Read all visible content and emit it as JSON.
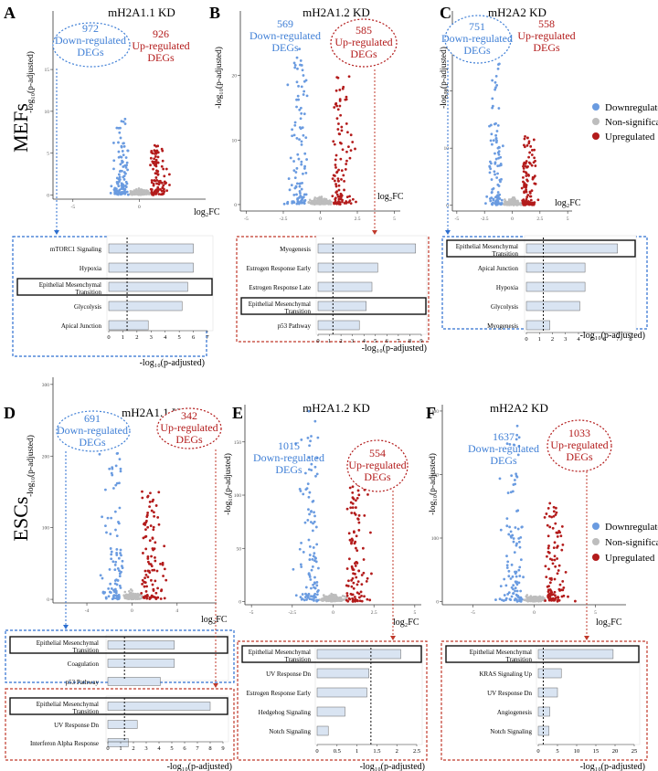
{
  "row_labels": {
    "top": "MEFs",
    "bottom": "ESCs"
  },
  "legend": {
    "items": [
      {
        "label": "Downregulated",
        "color": "#6a9be0"
      },
      {
        "label": "Non-significant",
        "color": "#bdbdbd"
      },
      {
        "label": "Upregulated",
        "color": "#b31b1b"
      }
    ]
  },
  "colors": {
    "down": "#3f7fd6",
    "up": "#b31b1b",
    "bar_fill": "#d9e4f2",
    "bar_stroke": "#555555"
  },
  "chart_data": [
    {
      "id": "A",
      "type": "scatter",
      "panel_letter": "A",
      "title": "mH2A1.1 KD",
      "ylabel": "-log₁₀(p-adjusted)",
      "xlabel": "log₂FC",
      "xticks": [
        -5,
        0
      ],
      "yticks": [
        0,
        5,
        10,
        15
      ],
      "xlim": [
        -6.5,
        5
      ],
      "ylim": [
        -0.5,
        22
      ],
      "down": {
        "count": "972",
        "label": "Down-regulated DEGs",
        "max_y": 9
      },
      "up": {
        "count": "926",
        "label": "Up-regulated DEGs",
        "max_y": 6
      }
    },
    {
      "id": "B",
      "type": "scatter",
      "panel_letter": "B",
      "title": "mH2A1.2 KD",
      "ylabel": "-log₁₀(p-adjusted)",
      "xlabel": "log₂FC",
      "xticks": [
        -5.0,
        -2.5,
        0.0,
        2.5,
        5.0
      ],
      "yticks": [
        0,
        10,
        20
      ],
      "xlim": [
        -5.4,
        5.4
      ],
      "ylim": [
        -1,
        30
      ],
      "down": {
        "count": "569",
        "label": "Down-regulated DEGs",
        "max_y": 24
      },
      "up": {
        "count": "585",
        "label": "Up-regulated DEGs",
        "max_y": 20
      }
    },
    {
      "id": "C",
      "type": "scatter",
      "panel_letter": "C",
      "title": "mH2A2 KD",
      "ylabel": "-log₁₀(p-adjusted)",
      "xlabel": "log₂FC",
      "xticks": [
        -5.0,
        -2.5,
        0.0,
        2.5,
        5.0
      ],
      "yticks": [
        0,
        10,
        20
      ],
      "xlim": [
        -5.4,
        5.4
      ],
      "ylim": [
        -1,
        34
      ],
      "down": {
        "count": "751",
        "label": "Down-regulated DEGs",
        "max_y": 28
      },
      "up": {
        "count": "558",
        "label": "Up-regulated DEGs",
        "max_y": 12
      }
    },
    {
      "id": "D",
      "type": "scatter",
      "panel_letter": "D",
      "title": "mH2A1.1 KD",
      "ylabel": "-log₁₀(p-adjusted)",
      "xlabel": "log₂FC",
      "xticks": [
        -4,
        0,
        4
      ],
      "yticks": [
        0,
        100,
        200,
        300
      ],
      "xlim": [
        -7,
        7.5
      ],
      "ylim": [
        -5,
        310
      ],
      "down": {
        "count": "691",
        "label": "Down-regulated DEGs",
        "max_y": 240
      },
      "up": {
        "count": "342",
        "label": "Up-regulated DEGs",
        "max_y": 150
      }
    },
    {
      "id": "E",
      "type": "scatter",
      "panel_letter": "E",
      "title": "mH2A1.2 KD",
      "ylabel": "-log₁₀(p-adjusted)",
      "xlabel": "log₂FC",
      "xticks": [
        -5.0,
        -2.5,
        0.0,
        2.5,
        5.0
      ],
      "yticks": [
        0,
        50,
        100,
        150
      ],
      "xlim": [
        -5.4,
        5.4
      ],
      "ylim": [
        -3,
        185
      ],
      "down": {
        "count": "1015",
        "label": "Down-regulated DEGs",
        "max_y": 180
      },
      "up": {
        "count": "554",
        "label": "Up-regulated DEGs",
        "max_y": 110
      }
    },
    {
      "id": "F",
      "type": "scatter",
      "panel_letter": "F",
      "title": "mH2A2 KD",
      "ylabel": "-log₁₀(p-adjusted)",
      "xlabel": "log₂FC",
      "xticks": [
        -5,
        0,
        5
      ],
      "yticks": [
        0,
        100,
        200,
        300
      ],
      "xlim": [
        -7.5,
        7.5
      ],
      "ylim": [
        -5,
        310
      ],
      "down": {
        "count": "1637",
        "label": "Down-regulated DEGs",
        "max_y": 280
      },
      "up": {
        "count": "1033",
        "label": "Up-regulated DEGs",
        "max_y": 160
      }
    },
    {
      "id": "A-bar",
      "type": "bar",
      "box": "blue",
      "categories": [
        "mTORC1 Signaling",
        "Hypoxia",
        "Epithelial Mesenchymal Transition",
        "Glycolysis",
        "Apical Junction"
      ],
      "values": [
        6.0,
        6.0,
        5.6,
        5.2,
        2.8
      ],
      "highlight": 2,
      "xticks": [
        0,
        1,
        2,
        3,
        4,
        5,
        6,
        7
      ],
      "xlim": [
        0,
        7
      ],
      "threshold": 1.3,
      "xlabel": "-log₁₀(p-adjusted)"
    },
    {
      "id": "B-bar",
      "type": "bar",
      "box": "red",
      "categories": [
        "Myogenesis",
        "Estrogen Response Early",
        "Estrogen Response Late",
        "Epithelial Mesenchymal Transition",
        "p53 Pathway"
      ],
      "values": [
        8.5,
        5.2,
        4.7,
        4.2,
        3.6
      ],
      "highlight": 3,
      "xticks": [
        0,
        1,
        2,
        3,
        4,
        5,
        6,
        7,
        8,
        9
      ],
      "xlim": [
        0,
        9
      ],
      "threshold": 1.3,
      "xlabel": "-log₁₀(p-adjusted)"
    },
    {
      "id": "C-bar",
      "type": "bar",
      "box": "blue",
      "categories": [
        "Epithelial Mesenchymal Transition",
        "Apical Junction",
        "Hypoxia",
        "Glycolysis",
        "Myogenesis"
      ],
      "values": [
        7.0,
        4.5,
        4.5,
        4.1,
        1.8
      ],
      "highlight": 0,
      "xticks": [
        0,
        1,
        2,
        3,
        4,
        5,
        6,
        7,
        8
      ],
      "xlim": [
        0,
        8
      ],
      "threshold": 1.3,
      "xlabel": "-log₁₀(p-adjusted)"
    },
    {
      "id": "D-bar-down",
      "type": "bar",
      "box": "blue",
      "categories": [
        "Epithelial Mesenchymal Transition",
        "Coagulation",
        "p53 Pathway"
      ],
      "values": [
        5.2,
        5.2,
        4.1
      ],
      "highlight": 0,
      "xticks": [],
      "xlim": [
        0,
        9
      ],
      "threshold": 1.3,
      "xlabel": ""
    },
    {
      "id": "D-bar-up",
      "type": "bar",
      "box": "red",
      "categories": [
        "Epithelial Mesenchymal Transition",
        "UV Response Dn",
        "Interferon Alpha Response"
      ],
      "values": [
        8.0,
        2.3,
        1.6
      ],
      "highlight": 0,
      "xticks": [
        0,
        1,
        2,
        3,
        4,
        5,
        6,
        7,
        8,
        9
      ],
      "xlim": [
        0,
        9
      ],
      "threshold": 1.3,
      "xlabel": "-log₁₀(p-adjusted)"
    },
    {
      "id": "E-bar",
      "type": "bar",
      "box": "red",
      "categories": [
        "Epithelial Mesenchymal Transition",
        "UV Response Dn",
        "Estrogen Response Early",
        "Hedgehog Signaling",
        "Notch Signaling"
      ],
      "values": [
        2.1,
        1.3,
        1.25,
        0.7,
        0.28
      ],
      "highlight": 0,
      "xticks": [
        0,
        0.5,
        1,
        1.5,
        2,
        2.5
      ],
      "xlim": [
        0,
        2.5
      ],
      "threshold": 1.35,
      "xlabel": "-log₁₀(p-adjusted)"
    },
    {
      "id": "F-bar",
      "type": "bar",
      "box": "red",
      "categories": [
        "Epithelial Mesenchymal Transition",
        "KRAS Signaling Up",
        "UV Response Dn",
        "Angiogenesis",
        "Notch Signaling"
      ],
      "values": [
        19.5,
        6.0,
        5.0,
        3.0,
        2.8
      ],
      "highlight": 0,
      "xticks": [
        0,
        5,
        10,
        15,
        20,
        25
      ],
      "xlim": [
        0,
        25
      ],
      "threshold": 1.3,
      "xlabel": "-log₁₀(p-adjusted)"
    }
  ]
}
